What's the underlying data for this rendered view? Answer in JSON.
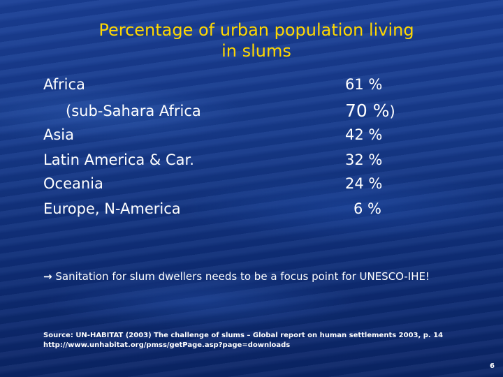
{
  "slide": {
    "title_line1": "Percentage of urban population living",
    "title_line2": "in slums",
    "rows": [
      {
        "label": "Africa",
        "value": "61 %"
      },
      {
        "label": "(sub-Sahara Africa",
        "value": "70 %",
        "suffix": ")"
      },
      {
        "label": "Asia",
        "value": "42 %"
      },
      {
        "label": "Latin America & Car.",
        "value": "32 %"
      },
      {
        "label": "Oceania",
        "value": "24 %"
      },
      {
        "label": "Europe, N-America",
        "value": "6 %"
      }
    ],
    "note_arrow": "→",
    "note_text": "Sanitation for slum dwellers needs to be a focus point for UNESCO-IHE!",
    "source_line1": "Source: UN-HABITAT (2003) The challenge of slums – Global report on human settlements 2003, p. 14",
    "source_line2": "http://www.unhabitat.org/pmss/getPage.asp?page=downloads",
    "page_number": "6"
  }
}
